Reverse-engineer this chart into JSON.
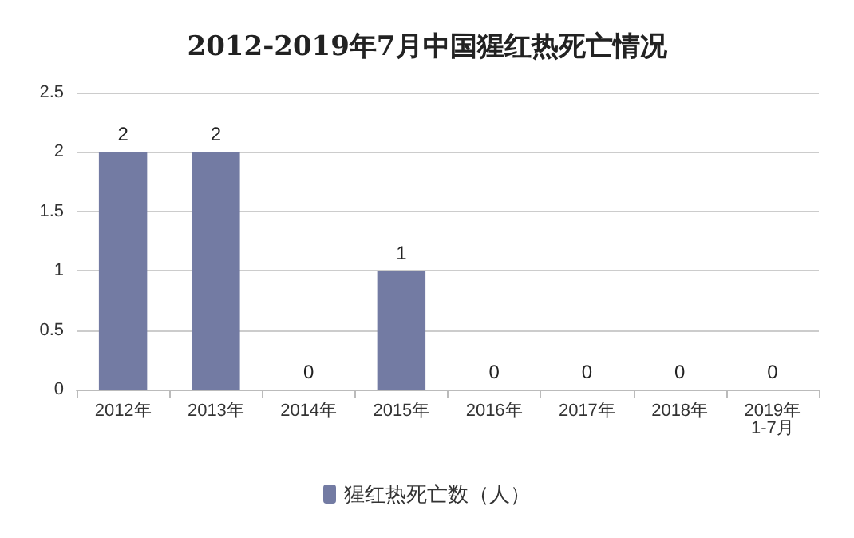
{
  "chart_data": {
    "type": "bar",
    "title": "2012-2019年7月中国猩红热死亡情况",
    "categories": [
      "2012年",
      "2013年",
      "2014年",
      "2015年",
      "2016年",
      "2017年",
      "2018年",
      "2019年\n1-7月"
    ],
    "series": [
      {
        "name": "猩红热死亡数（人）",
        "color": "#737ba3",
        "values": [
          2,
          2,
          0,
          1,
          0,
          0,
          0,
          0
        ]
      }
    ],
    "ylim": [
      0,
      2.5
    ],
    "yticks": [
      0,
      0.5,
      1,
      1.5,
      2,
      2.5
    ],
    "grid": "y",
    "legend": "bottom",
    "data_labels": true
  }
}
